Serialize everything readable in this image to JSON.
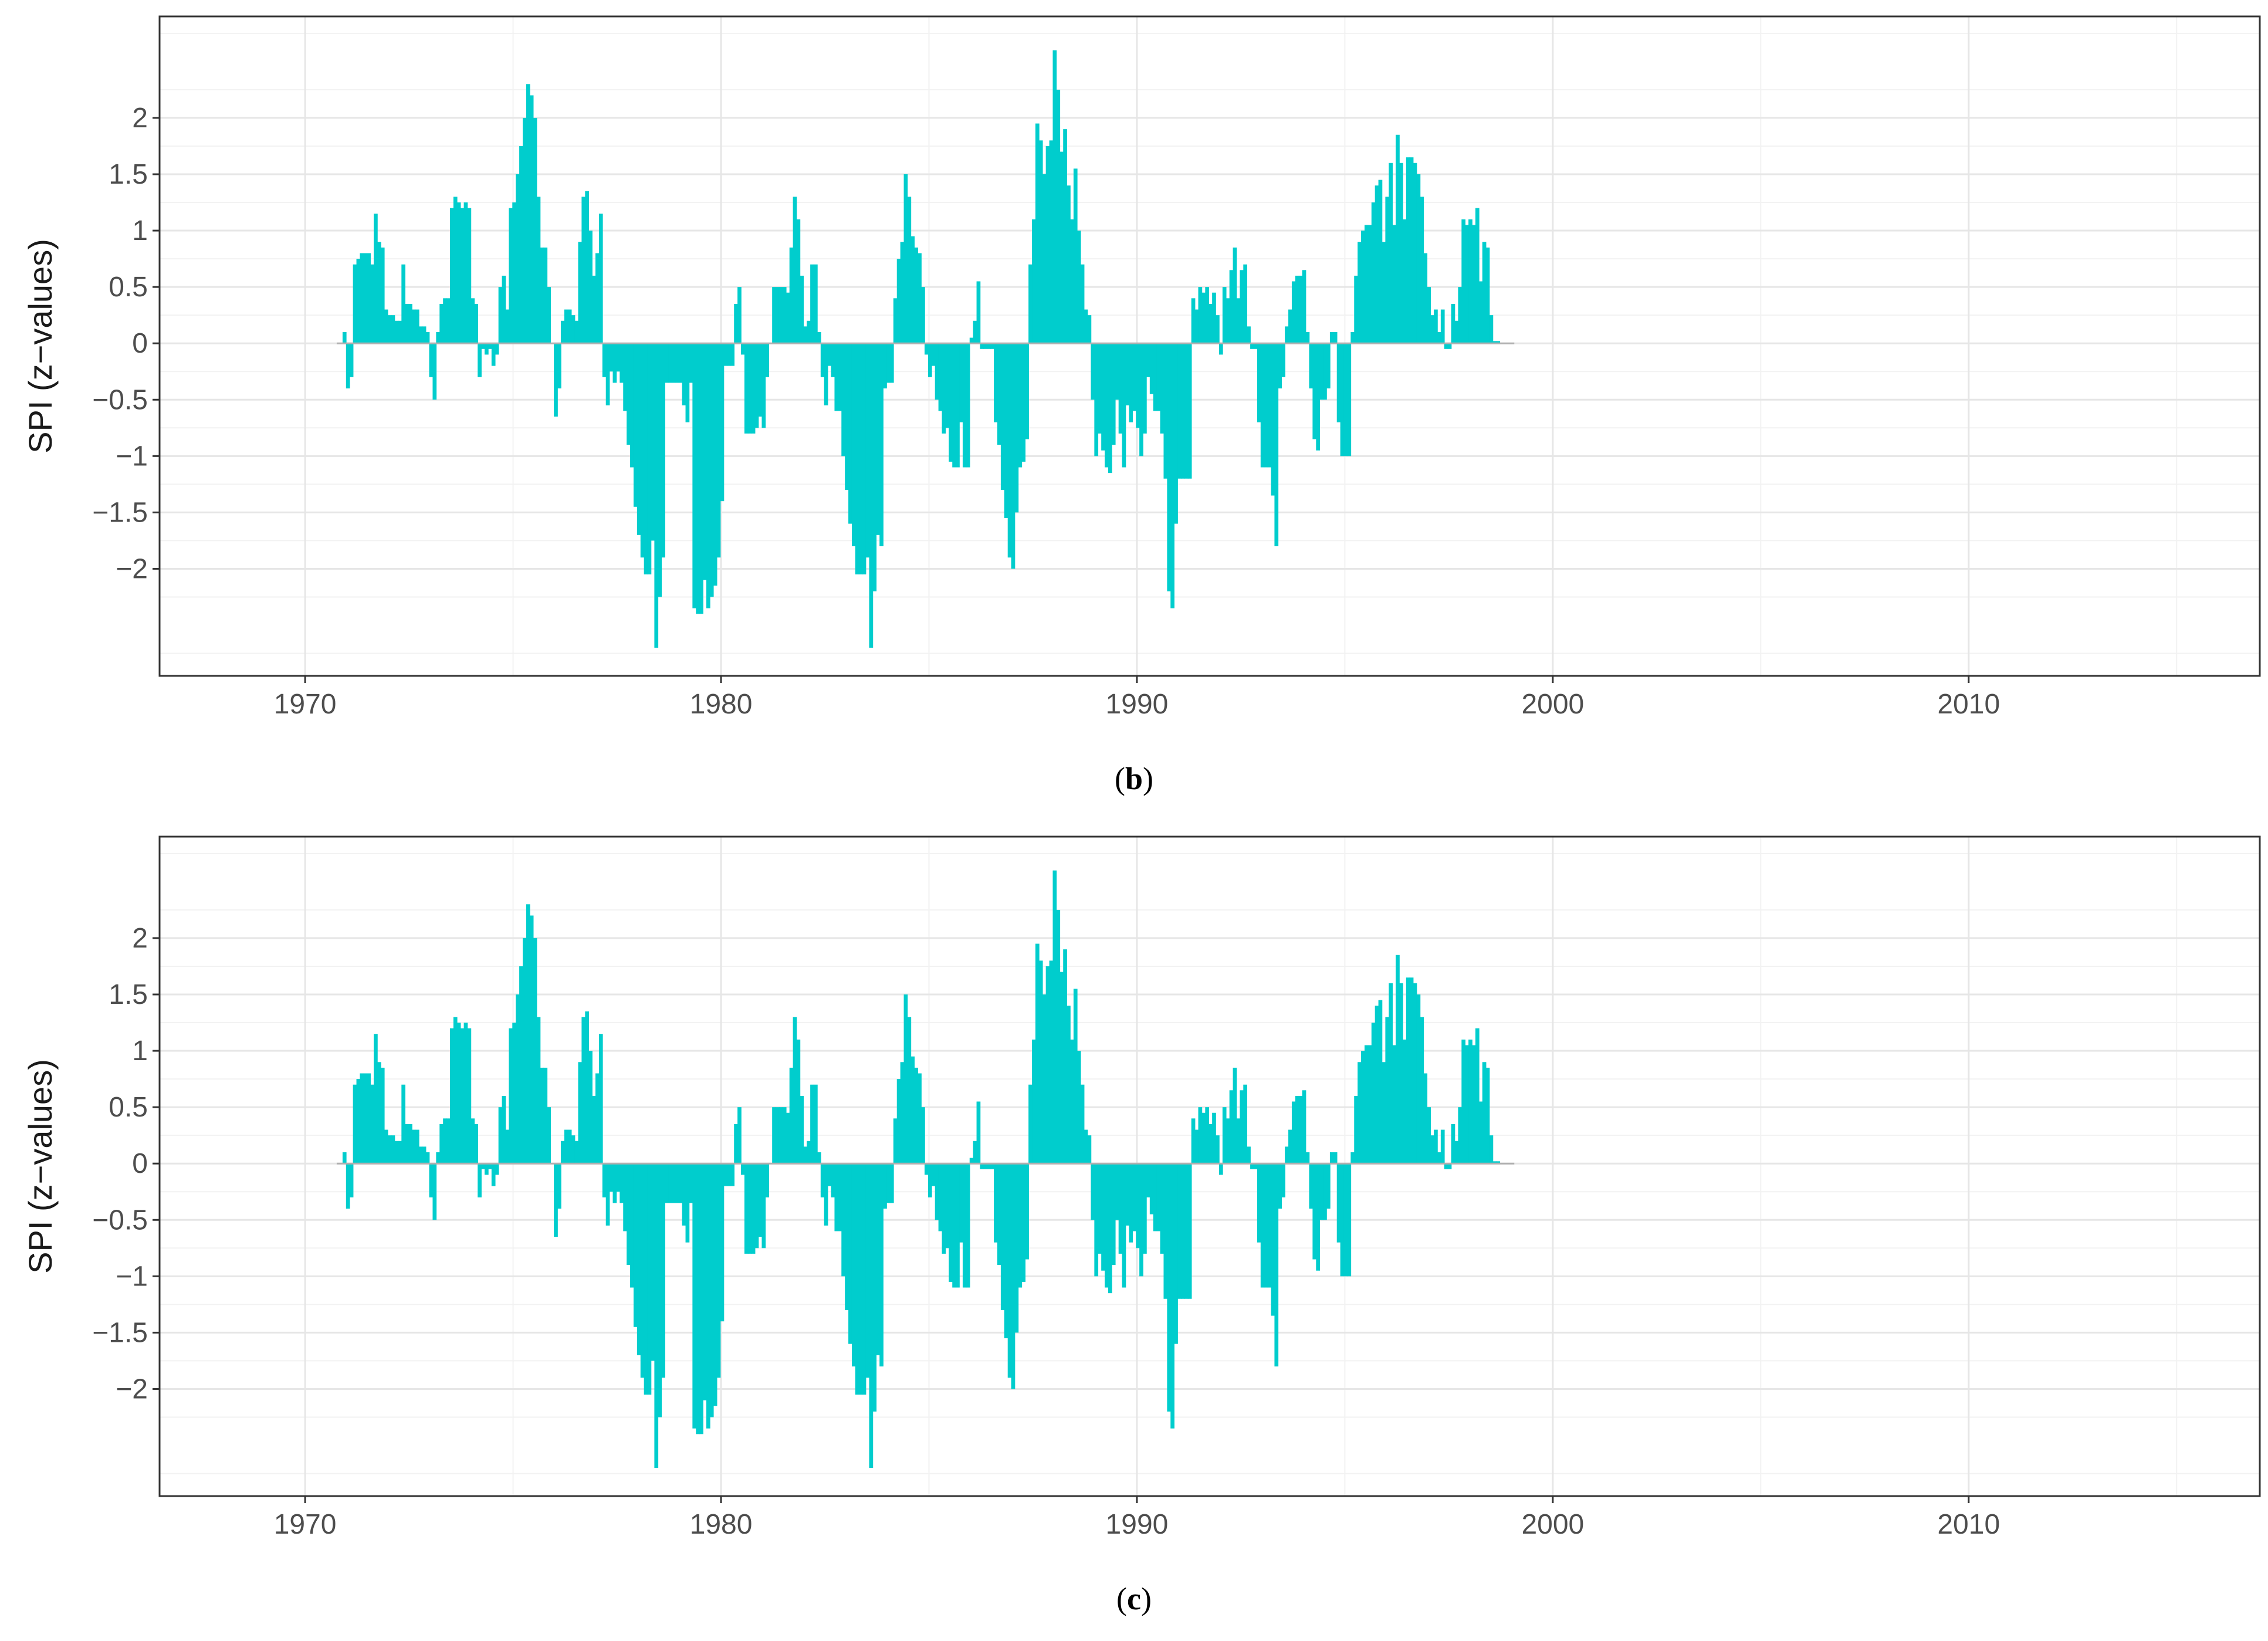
{
  "colors": {
    "bar": "#00CDCD",
    "zero_line": "#B0B0B0",
    "grid_major": "#E6E6E6",
    "grid_minor": "#F2F2F2",
    "border": "#333333"
  },
  "chart_data": [
    {
      "type": "bar",
      "caption_open": "(",
      "caption_label": "b",
      "caption_close": ")",
      "ylabel": "SPI (z−values)",
      "xlabel": "",
      "xlim": [
        1966.5,
        2017.0
      ],
      "ylim": [
        -2.95,
        2.9
      ],
      "x_ticks": [
        1970,
        1980,
        1990,
        2000,
        2010
      ],
      "x_tick_labels": [
        "1970",
        "1980",
        "1990",
        "2000",
        "2010"
      ],
      "y_ticks": [
        -2,
        -1.5,
        -1,
        -0.5,
        0,
        0.5,
        1,
        1.5,
        2
      ],
      "y_tick_labels": [
        "−2",
        "−1.5",
        "−1",
        "−0.5",
        "0",
        "0.5",
        "1",
        "1.5",
        "2"
      ],
      "grid": true,
      "series_note": "monthly SPI values, 1971-01 onward; x_start is decimal year of first bar, step 1/12",
      "x_start": 1970.9,
      "x_step": 0.0833,
      "values": [
        0.1,
        -0.4,
        -0.3,
        0.7,
        0.75,
        0.8,
        0.8,
        0.8,
        0.7,
        1.15,
        0.9,
        0.85,
        0.3,
        0.25,
        0.25,
        0.2,
        0.2,
        0.7,
        0.35,
        0.35,
        0.3,
        0.3,
        0.15,
        0.15,
        0.1,
        -0.3,
        -0.5,
        0.1,
        0.35,
        0.4,
        0.4,
        1.2,
        1.3,
        1.25,
        1.2,
        1.25,
        1.2,
        0.4,
        0.35,
        -0.3,
        -0.05,
        -0.1,
        -0.05,
        -0.2,
        -0.1,
        0.5,
        0.6,
        0.3,
        1.2,
        1.25,
        1.5,
        1.75,
        2.0,
        2.3,
        2.2,
        2.0,
        1.3,
        0.85,
        0.85,
        0.5,
        0.0,
        -0.65,
        -0.4,
        0.2,
        0.3,
        0.3,
        0.25,
        0.2,
        0.9,
        1.3,
        1.35,
        1.0,
        0.6,
        0.8,
        1.15,
        -0.3,
        -0.55,
        -0.25,
        -0.35,
        -0.25,
        -0.35,
        -0.6,
        -0.9,
        -1.1,
        -1.45,
        -1.7,
        -1.9,
        -2.05,
        -2.05,
        -1.75,
        -2.7,
        -2.25,
        -1.9,
        -0.35,
        -0.35,
        -0.35,
        -0.35,
        -0.35,
        -0.55,
        -0.7,
        -0.35,
        -2.35,
        -2.4,
        -2.4,
        -2.1,
        -2.35,
        -2.25,
        -2.15,
        -1.9,
        -1.4,
        -0.2,
        -0.2,
        -0.2,
        0.35,
        0.5,
        -0.1,
        -0.8,
        -0.8,
        -0.8,
        -0.75,
        -0.65,
        -0.75,
        -0.3,
        0.0,
        0.5,
        0.5,
        0.5,
        0.5,
        0.45,
        0.85,
        1.3,
        1.1,
        0.6,
        0.15,
        0.2,
        0.7,
        0.7,
        0.1,
        -0.3,
        -0.55,
        -0.2,
        -0.3,
        -0.6,
        -0.6,
        -1.0,
        -1.3,
        -1.6,
        -1.8,
        -2.05,
        -2.05,
        -2.05,
        -1.9,
        -2.7,
        -2.2,
        -1.7,
        -1.8,
        -0.4,
        -0.35,
        -0.35,
        0.4,
        0.75,
        0.9,
        1.5,
        1.3,
        0.95,
        0.85,
        0.8,
        0.5,
        -0.1,
        -0.3,
        -0.2,
        -0.5,
        -0.6,
        -0.8,
        -0.75,
        -1.05,
        -1.1,
        -1.1,
        -0.7,
        -1.1,
        -1.1,
        0.05,
        0.2,
        0.55,
        -0.05,
        -0.05,
        -0.05,
        -0.05,
        -0.7,
        -0.9,
        -1.3,
        -1.55,
        -1.9,
        -2.0,
        -1.5,
        -1.1,
        -1.05,
        -0.85,
        0.7,
        1.1,
        1.95,
        1.8,
        1.5,
        1.75,
        1.8,
        2.6,
        2.25,
        1.7,
        1.9,
        1.4,
        1.1,
        1.55,
        1.0,
        0.7,
        0.3,
        0.25,
        -0.5,
        -1.0,
        -0.8,
        -0.95,
        -1.1,
        -1.15,
        -0.9,
        -0.5,
        -0.8,
        -1.1,
        -0.55,
        -0.7,
        -0.6,
        -0.75,
        -1.0,
        -0.8,
        -0.3,
        -0.45,
        -0.6,
        -0.6,
        -0.8,
        -1.2,
        -2.2,
        -2.35,
        -1.6,
        -1.2,
        -1.2,
        -1.2,
        -1.2,
        0.4,
        0.3,
        0.5,
        0.45,
        0.5,
        0.35,
        0.45,
        0.25,
        -0.1,
        0.5,
        0.4,
        0.65,
        0.85,
        0.4,
        0.65,
        0.7,
        0.15,
        -0.05,
        -0.05,
        -0.7,
        -1.1,
        -1.1,
        -1.1,
        -1.35,
        -1.8,
        -0.4,
        -0.3,
        0.15,
        0.3,
        0.55,
        0.6,
        0.6,
        0.65,
        0.1,
        -0.4,
        -0.85,
        -0.95,
        -0.5,
        -0.5,
        -0.4,
        0.1,
        0.1,
        -0.7,
        -1.0,
        -1.0,
        -1.0,
        0.1,
        0.6,
        0.9,
        1.0,
        1.05,
        1.05,
        1.25,
        1.4,
        1.45,
        0.9,
        1.3,
        1.6,
        1.05,
        1.85,
        1.6,
        1.1,
        1.65,
        1.65,
        1.6,
        1.5,
        1.3,
        0.8,
        0.5,
        0.25,
        0.3,
        0.1,
        0.3,
        -0.05,
        -0.05,
        0.35,
        0.2,
        0.5,
        1.1,
        1.05,
        1.1,
        1.05,
        1.2,
        0.55,
        0.9,
        0.85,
        0.25,
        0.02,
        0.02
      ]
    },
    {
      "type": "bar",
      "caption_open": "(",
      "caption_label": "c",
      "caption_close": ")",
      "ylabel": "SPI (z−values)",
      "xlabel": "",
      "xlim": [
        1966.5,
        2017.0
      ],
      "ylim": [
        -2.95,
        2.9
      ],
      "x_ticks": [
        1970,
        1980,
        1990,
        2000,
        2010
      ],
      "x_tick_labels": [
        "1970",
        "1980",
        "1990",
        "2000",
        "2010"
      ],
      "y_ticks": [
        -2,
        -1.5,
        -1,
        -0.5,
        0,
        0.5,
        1,
        1.5,
        2
      ],
      "y_tick_labels": [
        "−2",
        "−1.5",
        "−1",
        "−0.5",
        "0",
        "0.5",
        "1",
        "1.5",
        "2"
      ],
      "grid": true,
      "series_note": "monthly SPI values, 1971-01 onward; x_start is decimal year of first bar, step 1/12",
      "x_start": 1970.9,
      "x_step": 0.0833,
      "values": [
        0.1,
        -0.4,
        -0.3,
        0.7,
        0.75,
        0.8,
        0.8,
        0.8,
        0.7,
        1.15,
        0.9,
        0.85,
        0.3,
        0.25,
        0.25,
        0.2,
        0.2,
        0.7,
        0.35,
        0.35,
        0.3,
        0.3,
        0.15,
        0.15,
        0.1,
        -0.3,
        -0.5,
        0.1,
        0.35,
        0.4,
        0.4,
        1.2,
        1.3,
        1.25,
        1.2,
        1.25,
        1.2,
        0.4,
        0.35,
        -0.3,
        -0.05,
        -0.1,
        -0.05,
        -0.2,
        -0.1,
        0.5,
        0.6,
        0.3,
        1.2,
        1.25,
        1.5,
        1.75,
        2.0,
        2.3,
        2.2,
        2.0,
        1.3,
        0.85,
        0.85,
        0.5,
        0.0,
        -0.65,
        -0.4,
        0.2,
        0.3,
        0.3,
        0.25,
        0.2,
        0.9,
        1.3,
        1.35,
        1.0,
        0.6,
        0.8,
        1.15,
        -0.3,
        -0.55,
        -0.25,
        -0.35,
        -0.25,
        -0.35,
        -0.6,
        -0.9,
        -1.1,
        -1.45,
        -1.7,
        -1.9,
        -2.05,
        -2.05,
        -1.75,
        -2.7,
        -2.25,
        -1.9,
        -0.35,
        -0.35,
        -0.35,
        -0.35,
        -0.35,
        -0.55,
        -0.7,
        -0.35,
        -2.35,
        -2.4,
        -2.4,
        -2.1,
        -2.35,
        -2.25,
        -2.15,
        -1.9,
        -1.4,
        -0.2,
        -0.2,
        -0.2,
        0.35,
        0.5,
        -0.1,
        -0.8,
        -0.8,
        -0.8,
        -0.75,
        -0.65,
        -0.75,
        -0.3,
        0.0,
        0.5,
        0.5,
        0.5,
        0.5,
        0.45,
        0.85,
        1.3,
        1.1,
        0.6,
        0.15,
        0.2,
        0.7,
        0.7,
        0.1,
        -0.3,
        -0.55,
        -0.2,
        -0.3,
        -0.6,
        -0.6,
        -1.0,
        -1.3,
        -1.6,
        -1.8,
        -2.05,
        -2.05,
        -2.05,
        -1.9,
        -2.7,
        -2.2,
        -1.7,
        -1.8,
        -0.4,
        -0.35,
        -0.35,
        0.4,
        0.75,
        0.9,
        1.5,
        1.3,
        0.95,
        0.85,
        0.8,
        0.5,
        -0.1,
        -0.3,
        -0.2,
        -0.5,
        -0.6,
        -0.8,
        -0.75,
        -1.05,
        -1.1,
        -1.1,
        -0.7,
        -1.1,
        -1.1,
        0.05,
        0.2,
        0.55,
        -0.05,
        -0.05,
        -0.05,
        -0.05,
        -0.7,
        -0.9,
        -1.3,
        -1.55,
        -1.9,
        -2.0,
        -1.5,
        -1.1,
        -1.05,
        -0.85,
        0.7,
        1.1,
        1.95,
        1.8,
        1.5,
        1.75,
        1.8,
        2.6,
        2.25,
        1.7,
        1.9,
        1.4,
        1.1,
        1.55,
        1.0,
        0.7,
        0.3,
        0.25,
        -0.5,
        -1.0,
        -0.8,
        -0.95,
        -1.1,
        -1.15,
        -0.9,
        -0.5,
        -0.8,
        -1.1,
        -0.55,
        -0.7,
        -0.6,
        -0.75,
        -1.0,
        -0.8,
        -0.3,
        -0.45,
        -0.6,
        -0.6,
        -0.8,
        -1.2,
        -2.2,
        -2.35,
        -1.6,
        -1.2,
        -1.2,
        -1.2,
        -1.2,
        0.4,
        0.3,
        0.5,
        0.45,
        0.5,
        0.35,
        0.45,
        0.25,
        -0.1,
        0.5,
        0.4,
        0.65,
        0.85,
        0.4,
        0.65,
        0.7,
        0.15,
        -0.05,
        -0.05,
        -0.7,
        -1.1,
        -1.1,
        -1.1,
        -1.35,
        -1.8,
        -0.4,
        -0.3,
        0.15,
        0.3,
        0.55,
        0.6,
        0.6,
        0.65,
        0.1,
        -0.4,
        -0.85,
        -0.95,
        -0.5,
        -0.5,
        -0.4,
        0.1,
        0.1,
        -0.7,
        -1.0,
        -1.0,
        -1.0,
        0.1,
        0.6,
        0.9,
        1.0,
        1.05,
        1.05,
        1.25,
        1.4,
        1.45,
        0.9,
        1.3,
        1.6,
        1.05,
        1.85,
        1.6,
        1.1,
        1.65,
        1.65,
        1.6,
        1.5,
        1.3,
        0.8,
        0.5,
        0.25,
        0.3,
        0.1,
        0.3,
        -0.05,
        -0.05,
        0.35,
        0.2,
        0.5,
        1.1,
        1.05,
        1.1,
        1.05,
        1.2,
        0.55,
        0.9,
        0.85,
        0.25,
        0.02,
        0.02
      ]
    }
  ]
}
